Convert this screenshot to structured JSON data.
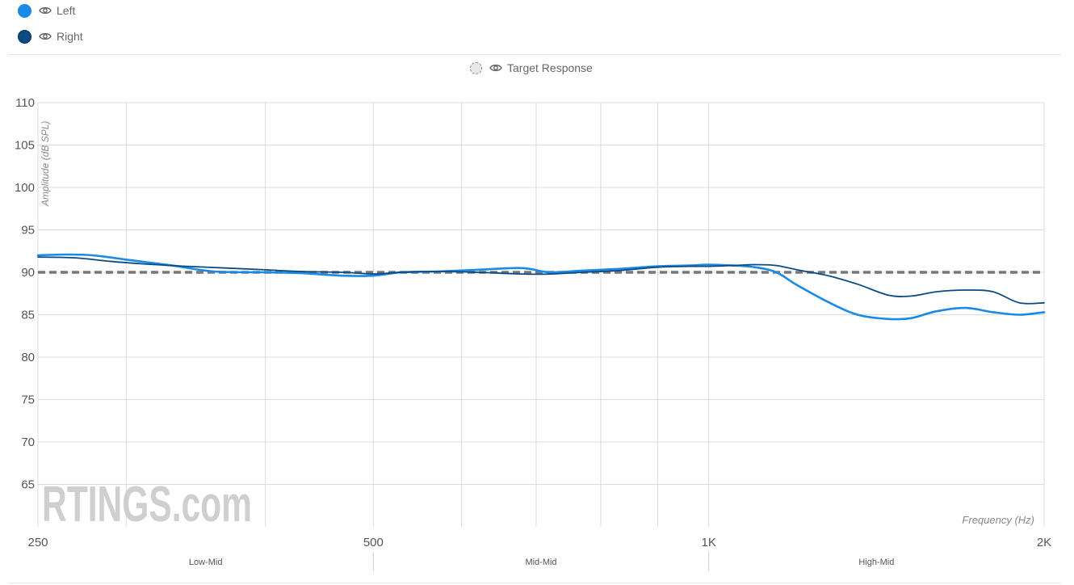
{
  "legend": {
    "items": [
      {
        "label": "Left",
        "color": "#1a8ae6",
        "icon": "eye-icon"
      },
      {
        "label": "Right",
        "color": "#0b4a85",
        "icon": "eye-icon"
      }
    ],
    "target": {
      "label": "Target Response",
      "icon": "eye-icon"
    }
  },
  "watermark": "RTINGS.com",
  "chart_data": {
    "type": "line",
    "xlabel": "Frequency (Hz)",
    "ylabel": "Amplitude (dB SPL)",
    "xscale": "log",
    "xlim": [
      250,
      2000
    ],
    "ylim": [
      60,
      110
    ],
    "x_ticks": [
      {
        "value": 250,
        "label": "250"
      },
      {
        "value": 500,
        "label": "500"
      },
      {
        "value": 1000,
        "label": "1K"
      },
      {
        "value": 2000,
        "label": "2K"
      }
    ],
    "x_minor_gridlines": [
      300,
      400,
      600,
      700,
      800,
      900
    ],
    "y_ticks": [
      65,
      70,
      75,
      80,
      85,
      90,
      95,
      100,
      105,
      110
    ],
    "grid": true,
    "bands": [
      {
        "label": "Low-Mid",
        "from": 250,
        "to": 500
      },
      {
        "label": "Mid-Mid",
        "from": 500,
        "to": 1000
      },
      {
        "label": "High-Mid",
        "from": 1000,
        "to": 2000
      }
    ],
    "target": {
      "name": "Target Response",
      "value": 90,
      "style": "dashed",
      "color": "#777777"
    },
    "series": [
      {
        "name": "Left",
        "color": "#1a8ae6",
        "x": [
          250,
          265,
          280,
          300,
          330,
          360,
          400,
          430,
          470,
          500,
          530,
          570,
          620,
          680,
          720,
          770,
          830,
          900,
          960,
          1000,
          1050,
          1100,
          1150,
          1200,
          1280,
          1360,
          1450,
          1520,
          1600,
          1700,
          1800,
          1900,
          2000
        ],
        "y": [
          92.0,
          92.1,
          92.0,
          91.5,
          90.8,
          90.1,
          90.0,
          89.9,
          89.6,
          89.6,
          90.0,
          90.1,
          90.3,
          90.5,
          90.0,
          90.2,
          90.4,
          90.7,
          90.8,
          90.9,
          90.8,
          90.6,
          90.0,
          88.5,
          86.5,
          85.0,
          84.5,
          84.6,
          85.4,
          85.8,
          85.3,
          85.0,
          85.3
        ]
      },
      {
        "name": "Right",
        "color": "#0b4a85",
        "x": [
          250,
          270,
          290,
          310,
          340,
          370,
          400,
          430,
          470,
          500,
          530,
          570,
          620,
          680,
          720,
          770,
          830,
          900,
          960,
          1000,
          1050,
          1100,
          1150,
          1200,
          1280,
          1360,
          1450,
          1520,
          1600,
          1700,
          1800,
          1900,
          2000
        ],
        "y": [
          91.8,
          91.7,
          91.3,
          91.0,
          90.7,
          90.5,
          90.3,
          90.1,
          90.0,
          89.8,
          90.0,
          90.1,
          90.0,
          89.8,
          89.8,
          90.0,
          90.2,
          90.6,
          90.7,
          90.7,
          90.8,
          90.9,
          90.8,
          90.3,
          89.6,
          88.6,
          87.3,
          87.2,
          87.7,
          87.9,
          87.7,
          86.4,
          86.4
        ]
      }
    ]
  }
}
